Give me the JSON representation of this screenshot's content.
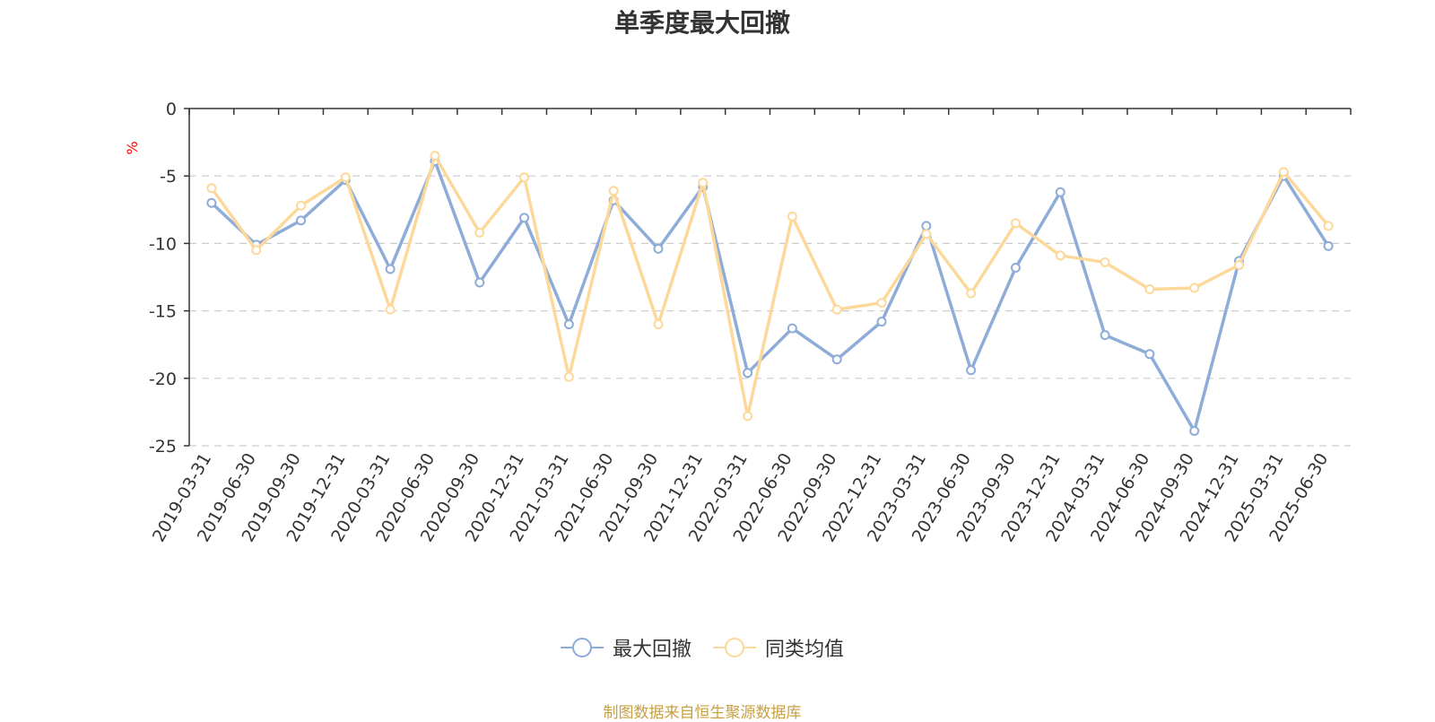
{
  "title": "单季度最大回撤",
  "source_note": "制图数据来自恒生聚源数据库",
  "colors": {
    "series1": "#8eacd8",
    "series2": "#fdd89b",
    "grid": "#cccccc",
    "axis": "#333333",
    "unit": "#ff0000",
    "source": "#c8a040"
  },
  "chart_data": {
    "type": "line",
    "title": "单季度最大回撤",
    "ylabel": "%",
    "xlabel": "",
    "ylim": [
      -25,
      0
    ],
    "yticks": [
      "0",
      "-5",
      "-10",
      "-15",
      "-20",
      "-25"
    ],
    "ytick_values": [
      0,
      -5,
      -10,
      -15,
      -20,
      -25
    ],
    "grid": true,
    "legend_position": "bottom-center",
    "categories": [
      "2019-03-31",
      "2019-06-30",
      "2019-09-30",
      "2019-12-31",
      "2020-03-31",
      "2020-06-30",
      "2020-09-30",
      "2020-12-31",
      "2021-03-31",
      "2021-06-30",
      "2021-09-30",
      "2021-12-31",
      "2022-03-31",
      "2022-06-30",
      "2022-09-30",
      "2022-12-31",
      "2023-03-31",
      "2023-06-30",
      "2023-09-30",
      "2023-12-31",
      "2024-03-31",
      "2024-06-30",
      "2024-09-30",
      "2024-12-31",
      "2025-03-31",
      "2025-06-30"
    ],
    "series": [
      {
        "name": "最大回撤",
        "values": [
          -7.0,
          -10.1,
          -8.3,
          -5.3,
          -11.9,
          -3.9,
          -12.9,
          -8.1,
          -16.0,
          -6.8,
          -10.4,
          -5.8,
          -19.6,
          -16.3,
          -18.6,
          -15.8,
          -8.7,
          -19.4,
          -11.8,
          -6.2,
          -16.8,
          -18.2,
          -23.9,
          -11.3,
          -5.0,
          -10.2
        ]
      },
      {
        "name": "同类均值",
        "values": [
          -5.9,
          -10.5,
          -7.2,
          -5.1,
          -14.9,
          -3.5,
          -9.2,
          -5.1,
          -19.9,
          -6.1,
          -16.0,
          -5.5,
          -22.8,
          -8.0,
          -14.9,
          -14.4,
          -9.3,
          -13.7,
          -8.5,
          -10.9,
          -11.4,
          -13.4,
          -13.3,
          -11.6,
          -4.7,
          -8.7
        ]
      }
    ]
  }
}
